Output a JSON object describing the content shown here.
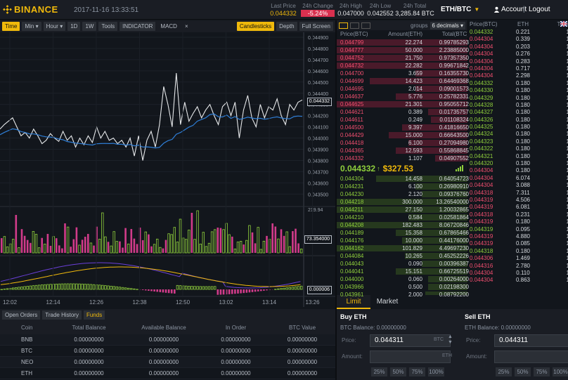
{
  "header": {
    "brand": "BINANCE",
    "datetime": "2017-11-16 13:33:51",
    "stats": [
      {
        "label": "Last Price",
        "value": "0.044332",
        "style": "yellow"
      },
      {
        "label": "24h Change",
        "value": "-5.24%",
        "style": "red"
      },
      {
        "label": "24h High",
        "value": "0.047000",
        "style": ""
      },
      {
        "label": "24h Low",
        "value": "0.042552",
        "style": ""
      },
      {
        "label": "24h Total",
        "value": "3,285.84 BTC",
        "style": ""
      }
    ],
    "pair": "ETH/BTC",
    "account": "Account",
    "separator": "|",
    "logout": "Logout"
  },
  "toolbar": {
    "time": "Time",
    "min": "Min",
    "hour": "Hour",
    "d1": "1D",
    "w1": "1W",
    "tools": "Tools",
    "indicator": "INDICATOR",
    "macd": "MACD",
    "close": "×",
    "candlesticks": "Candlesticks",
    "depth": "Depth",
    "fullscreen": "Full Screen"
  },
  "chart": {
    "price_axis": [
      "0.044900",
      "0.044800",
      "0.044700",
      "0.044600",
      "0.044500",
      "0.044400",
      "0.044300",
      "0.044200",
      "0.044100",
      "0.044000",
      "0.043900",
      "0.043800",
      "0.043700",
      "0.043600",
      "0.043500"
    ],
    "current_price": "0.044332",
    "volume_max": "219.94",
    "volume_current": "73.354000",
    "macd_current": "0.000006",
    "time_axis": [
      "12:02",
      "12:14",
      "12:26",
      "12:38",
      "12:50",
      "13:02",
      "13:14",
      "13:26"
    ]
  },
  "chart_data": {
    "type": "line",
    "title": "",
    "price_series": [
      0.04408,
      0.04412,
      0.04415,
      0.04418,
      0.0441,
      0.04402,
      0.04405,
      0.044,
      0.04408,
      0.04402,
      0.04395,
      0.04398,
      0.04404,
      0.044,
      0.04397,
      0.04406,
      0.04398,
      0.04402,
      0.04392,
      0.044,
      0.04394,
      0.04402,
      0.04396,
      0.0441,
      0.044,
      0.04406,
      0.04398,
      0.044,
      0.04395,
      0.04398,
      0.04392,
      0.044,
      0.04384,
      0.04402,
      0.0438,
      0.04398,
      0.04406,
      0.04392,
      0.04412,
      0.04446,
      0.0443,
      0.0441,
      0.04458,
      0.04412,
      0.04432,
      0.04415,
      0.04422,
      0.04428,
      0.04418,
      0.04425,
      0.0443,
      0.0442,
      0.04412,
      0.04428,
      0.04432,
      0.0442,
      0.04432,
      0.044,
      0.04425,
      0.04438,
      0.04418,
      0.0441,
      0.0443,
      0.04418,
      0.04428,
      0.04425,
      0.04435,
      0.0442,
      0.04412,
      0.0443,
      0.04425,
      0.04432,
      0.04434
    ],
    "ylim": [
      0.04345,
      0.04495
    ]
  },
  "order_book": {
    "groups_label": "groups",
    "decimals": "6 decimals",
    "headers": [
      "Price(BTC)",
      "Amount(ETH)",
      "Total(BTC)"
    ],
    "asks": [
      {
        "price": "0.044799",
        "amount": "22.274",
        "total": "0.99785293",
        "depth": 100
      },
      {
        "price": "0.044777",
        "amount": "50.000",
        "total": "2.23885000",
        "depth": 100
      },
      {
        "price": "0.044752",
        "amount": "21.750",
        "total": "0.97357350",
        "depth": 100
      },
      {
        "price": "0.044732",
        "amount": "22.282",
        "total": "0.99671842",
        "depth": 100
      },
      {
        "price": "0.044700",
        "amount": "3.659",
        "total": "0.16355730",
        "depth": 40
      },
      {
        "price": "0.044699",
        "amount": "14.423",
        "total": "0.64469368",
        "depth": 75
      },
      {
        "price": "0.044695",
        "amount": "2.014",
        "total": "0.09001573",
        "depth": 40
      },
      {
        "price": "0.044637",
        "amount": "5.776",
        "total": "0.25782331",
        "depth": 55
      },
      {
        "price": "0.044625",
        "amount": "21.301",
        "total": "0.95055712",
        "depth": 100
      },
      {
        "price": "0.044621",
        "amount": "0.389",
        "total": "0.01735757",
        "depth": 30
      },
      {
        "price": "0.044611",
        "amount": "0.249",
        "total": "0.01108324",
        "depth": 28
      },
      {
        "price": "0.044500",
        "amount": "9.397",
        "total": "0.41816650",
        "depth": 50
      },
      {
        "price": "0.044429",
        "amount": "15.000",
        "total": "0.66643500",
        "depth": 60
      },
      {
        "price": "0.044418",
        "amount": "6.100",
        "total": "0.27094980",
        "depth": 45
      },
      {
        "price": "0.044365",
        "amount": "12.593",
        "total": "0.55868845",
        "depth": 55
      },
      {
        "price": "0.044332",
        "amount": "1.107",
        "total": "0.04907552",
        "depth": 25
      }
    ],
    "last_price": "0.044332",
    "last_arrow": "↑",
    "last_usd": "$327.53",
    "bids": [
      {
        "price": "0.044304",
        "amount": "14.458",
        "total": "0.64054723",
        "depth": 70
      },
      {
        "price": "0.044231",
        "amount": "6.100",
        "total": "0.26980910",
        "depth": 40
      },
      {
        "price": "0.044230",
        "amount": "2.120",
        "total": "0.09376760",
        "depth": 35
      },
      {
        "price": "0.044218",
        "amount": "300.000",
        "total": "13.26540000",
        "depth": 100
      },
      {
        "price": "0.044211",
        "amount": "27.150",
        "total": "1.20032865",
        "depth": 100
      },
      {
        "price": "0.044210",
        "amount": "0.584",
        "total": "0.02581864",
        "depth": 45
      },
      {
        "price": "0.044208",
        "amount": "182.483",
        "total": "8.06720846",
        "depth": 100
      },
      {
        "price": "0.044189",
        "amount": "15.358",
        "total": "0.67865466",
        "depth": 55
      },
      {
        "price": "0.044176",
        "amount": "10.000",
        "total": "0.44176000",
        "depth": 50
      },
      {
        "price": "0.044162",
        "amount": "101.829",
        "total": "4.49697230",
        "depth": 100
      },
      {
        "price": "0.044084",
        "amount": "10.265",
        "total": "0.45252226",
        "depth": 48
      },
      {
        "price": "0.044043",
        "amount": "0.090",
        "total": "0.00396387",
        "depth": 35
      },
      {
        "price": "0.044041",
        "amount": "15.151",
        "total": "0.66725519",
        "depth": 55
      },
      {
        "price": "0.044000",
        "amount": "0.060",
        "total": "0.00264000",
        "depth": 30
      },
      {
        "price": "0.043966",
        "amount": "0.500",
        "total": "0.02198300",
        "depth": 30
      },
      {
        "price": "0.043961",
        "amount": "2.000",
        "total": "0.08792200",
        "depth": 32
      }
    ]
  },
  "trades": {
    "headers": [
      "Price(BTC)",
      "ETH",
      "Time"
    ],
    "rows": [
      {
        "price": "0.044332",
        "amount": "0.221",
        "time": "1",
        "dir": "up"
      },
      {
        "price": "0.044304",
        "amount": "0.339",
        "time": "1",
        "dir": "dn"
      },
      {
        "price": "0.044304",
        "amount": "0.203",
        "time": "1",
        "dir": "dn"
      },
      {
        "price": "0.044304",
        "amount": "0.276",
        "time": "1",
        "dir": "dn"
      },
      {
        "price": "0.044304",
        "amount": "0.283",
        "time": "1",
        "dir": "dn"
      },
      {
        "price": "0.044304",
        "amount": "0.717",
        "time": "1",
        "dir": "dn"
      },
      {
        "price": "0.044304",
        "amount": "2.298",
        "time": "1",
        "dir": "dn"
      },
      {
        "price": "0.044332",
        "amount": "0.180",
        "time": "1",
        "dir": "up"
      },
      {
        "price": "0.044330",
        "amount": "0.180",
        "time": "1",
        "dir": "up"
      },
      {
        "price": "0.044329",
        "amount": "0.180",
        "time": "1",
        "dir": "up"
      },
      {
        "price": "0.044328",
        "amount": "0.180",
        "time": "1",
        "dir": "up"
      },
      {
        "price": "0.044327",
        "amount": "0.180",
        "time": "1",
        "dir": "up"
      },
      {
        "price": "0.044326",
        "amount": "0.180",
        "time": "1",
        "dir": "up"
      },
      {
        "price": "0.044325",
        "amount": "0.180",
        "time": "1",
        "dir": "up"
      },
      {
        "price": "0.044324",
        "amount": "0.180",
        "time": "1",
        "dir": "up"
      },
      {
        "price": "0.044323",
        "amount": "0.180",
        "time": "1",
        "dir": "up"
      },
      {
        "price": "0.044322",
        "amount": "0.180",
        "time": "1",
        "dir": "up"
      },
      {
        "price": "0.044321",
        "amount": "0.180",
        "time": "1",
        "dir": "up"
      },
      {
        "price": "0.044320",
        "amount": "0.180",
        "time": "1",
        "dir": "up"
      },
      {
        "price": "0.044304",
        "amount": "0.180",
        "time": "1",
        "dir": "dn"
      },
      {
        "price": "0.044304",
        "amount": "6.074",
        "time": "1",
        "dir": "dn"
      },
      {
        "price": "0.044304",
        "amount": "3.088",
        "time": "1",
        "dir": "dn"
      },
      {
        "price": "0.044318",
        "amount": "7.311",
        "time": "1",
        "dir": "dn"
      },
      {
        "price": "0.044319",
        "amount": "4.506",
        "time": "1",
        "dir": "dn"
      },
      {
        "price": "0.044319",
        "amount": "6.081",
        "time": "1",
        "dir": "dn"
      },
      {
        "price": "0.044318",
        "amount": "0.231",
        "time": "1",
        "dir": "dn"
      },
      {
        "price": "0.044319",
        "amount": "0.180",
        "time": "1",
        "dir": "dn"
      },
      {
        "price": "0.044319",
        "amount": "0.095",
        "time": "1",
        "dir": "up"
      },
      {
        "price": "0.044319",
        "amount": "4.880",
        "time": "1",
        "dir": "dn"
      },
      {
        "price": "0.044319",
        "amount": "0.085",
        "time": "1",
        "dir": "dn"
      },
      {
        "price": "0.044318",
        "amount": "0.180",
        "time": "1",
        "dir": "up"
      },
      {
        "price": "0.044306",
        "amount": "1.469",
        "time": "1",
        "dir": "dn"
      },
      {
        "price": "0.044316",
        "amount": "2.780",
        "time": "1",
        "dir": "dn"
      },
      {
        "price": "0.044304",
        "amount": "0.110",
        "time": "1",
        "dir": "dn"
      },
      {
        "price": "0.044304",
        "amount": "0.863",
        "time": "1",
        "dir": "dn"
      }
    ]
  },
  "bottom_tabs": {
    "open_orders": "Open Orders",
    "trade_history": "Trade History",
    "funds": "Funds"
  },
  "funds": {
    "headers": [
      "Coin",
      "Total Balance",
      "Available Balance",
      "In Order",
      "BTC Value"
    ],
    "rows": [
      [
        "BNB",
        "0.00000000",
        "0.00000000",
        "0.00000000",
        "0.00000000"
      ],
      [
        "BTC",
        "0.00000000",
        "0.00000000",
        "0.00000000",
        "0.00000000"
      ],
      [
        "NEO",
        "0.00000000",
        "0.00000000",
        "0.00000000",
        "0.00000000"
      ],
      [
        "ETH",
        "0.00000000",
        "0.00000000",
        "0.00000000",
        "0.00000000"
      ]
    ]
  },
  "order_form": {
    "tab_limit": "Limit",
    "tab_market": "Market",
    "buy": {
      "title": "Buy ETH",
      "balance": "BTC Balance: 0.00000000",
      "price_label": "Price:",
      "price": "0.044311",
      "price_unit": "BTC",
      "amount_label": "Amount:",
      "amount_unit": "ETH"
    },
    "sell": {
      "title": "Sell ETH",
      "balance": "ETH Balance: 0.00000000",
      "price_label": "Price:",
      "price": "0.044311",
      "amount_label": "Amount:"
    },
    "pcts": [
      "25%",
      "50%",
      "75%",
      "100%"
    ]
  },
  "colors": {
    "accent": "#f0b90b",
    "up": "#8fcf3c",
    "down": "#f04e6f",
    "bg": "#12161c"
  }
}
